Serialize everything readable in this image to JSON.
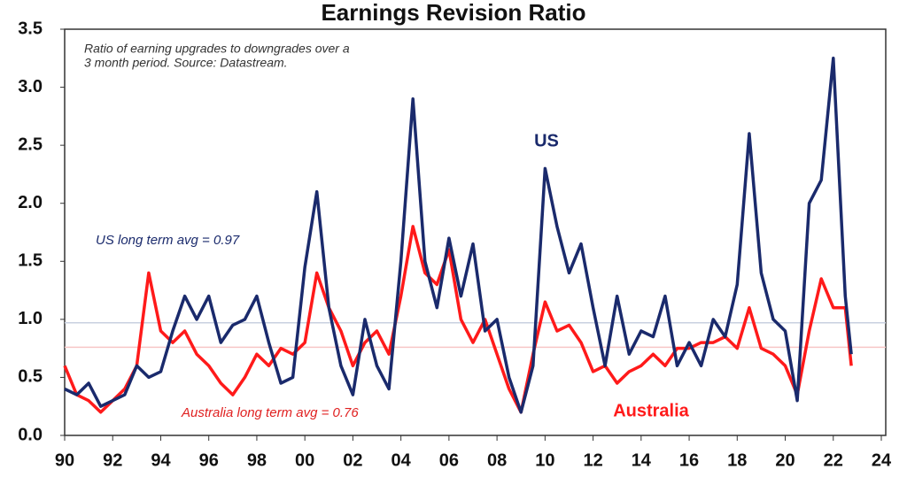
{
  "chart_data": {
    "type": "line",
    "title": "Earnings Revision Ratio",
    "note": [
      "Ratio of earning upgrades to downgrades over a",
      "3 month period. Source: Datastream."
    ],
    "x": [
      1990,
      1990.5,
      1991,
      1991.5,
      1992,
      1992.5,
      1993,
      1993.5,
      1994,
      1994.5,
      1995,
      1995.5,
      1996,
      1996.5,
      1997,
      1997.5,
      1998,
      1998.5,
      1999,
      1999.5,
      2000,
      2000.5,
      2001,
      2001.5,
      2002,
      2002.5,
      2003,
      2003.5,
      2004,
      2004.5,
      2005,
      2005.5,
      2006,
      2006.5,
      2007,
      2007.5,
      2008,
      2008.5,
      2009,
      2009.5,
      2010,
      2010.5,
      2011,
      2011.5,
      2012,
      2012.5,
      2013,
      2013.5,
      2014,
      2014.5,
      2015,
      2015.5,
      2016,
      2016.5,
      2017,
      2017.5,
      2018,
      2018.5,
      2019,
      2019.5,
      2020,
      2020.5,
      2021,
      2021.5,
      2022,
      2022.5,
      2022.75
    ],
    "series": [
      {
        "name": "US",
        "color": "#1a2a6c",
        "values": [
          0.4,
          0.35,
          0.45,
          0.25,
          0.3,
          0.35,
          0.6,
          0.5,
          0.55,
          0.9,
          1.2,
          1.0,
          1.2,
          0.8,
          0.95,
          1.0,
          1.2,
          0.8,
          0.45,
          0.5,
          1.45,
          2.1,
          1.1,
          0.6,
          0.35,
          1.0,
          0.6,
          0.4,
          1.5,
          2.9,
          1.5,
          1.1,
          1.7,
          1.2,
          1.65,
          0.9,
          1.0,
          0.5,
          0.2,
          0.6,
          2.3,
          1.8,
          1.4,
          1.65,
          1.1,
          0.6,
          1.2,
          0.7,
          0.9,
          0.85,
          1.2,
          0.6,
          0.8,
          0.6,
          1.0,
          0.85,
          1.3,
          2.6,
          1.4,
          1.0,
          0.9,
          0.3,
          2.0,
          2.2,
          3.25,
          1.2,
          0.7
        ]
      },
      {
        "name": "Australia",
        "color": "#ff1a1a",
        "values": [
          0.6,
          0.35,
          0.3,
          0.2,
          0.3,
          0.4,
          0.6,
          1.4,
          0.9,
          0.8,
          0.9,
          0.7,
          0.6,
          0.45,
          0.35,
          0.5,
          0.7,
          0.6,
          0.75,
          0.7,
          0.8,
          1.4,
          1.1,
          0.9,
          0.6,
          0.8,
          0.9,
          0.7,
          1.2,
          1.8,
          1.4,
          1.3,
          1.6,
          1.0,
          0.8,
          1.0,
          0.7,
          0.4,
          0.2,
          0.7,
          1.15,
          0.9,
          0.95,
          0.8,
          0.55,
          0.6,
          0.45,
          0.55,
          0.6,
          0.7,
          0.6,
          0.75,
          0.75,
          0.8,
          0.8,
          0.85,
          0.75,
          1.1,
          0.75,
          0.7,
          0.6,
          0.35,
          0.9,
          1.35,
          1.1,
          1.1,
          0.6
        ]
      }
    ],
    "reference_lines": [
      {
        "value": 0.97,
        "label": "US long term avg = 0.97",
        "color": "#c8d0e0",
        "text_color": "#1a2a6c"
      },
      {
        "value": 0.76,
        "label": "Australia long term avg = 0.76",
        "color": "#f7c6c6",
        "text_color": "#e02020"
      }
    ],
    "xlim": [
      1990,
      2024
    ],
    "xticks": [
      {
        "value": 1990,
        "label": "90"
      },
      {
        "value": 1992,
        "label": "92"
      },
      {
        "value": 1994,
        "label": "94"
      },
      {
        "value": 1996,
        "label": "96"
      },
      {
        "value": 1998,
        "label": "98"
      },
      {
        "value": 2000,
        "label": "00"
      },
      {
        "value": 2002,
        "label": "02"
      },
      {
        "value": 2004,
        "label": "04"
      },
      {
        "value": 2006,
        "label": "06"
      },
      {
        "value": 2008,
        "label": "08"
      },
      {
        "value": 2010,
        "label": "10"
      },
      {
        "value": 2012,
        "label": "12"
      },
      {
        "value": 2014,
        "label": "14"
      },
      {
        "value": 2016,
        "label": "16"
      },
      {
        "value": 2018,
        "label": "18"
      },
      {
        "value": 2020,
        "label": "20"
      },
      {
        "value": 2022,
        "label": "22"
      },
      {
        "value": 2024,
        "label": "24"
      }
    ],
    "ylim": [
      0,
      3.5
    ],
    "yticks": [
      {
        "value": 0,
        "label": "0.0"
      },
      0.5,
      {
        "value": 1,
        "label": "1.0"
      },
      1.5,
      {
        "value": 2,
        "label": "2.0"
      },
      2.5,
      {
        "value": 3,
        "label": "3.0"
      },
      3.5
    ]
  }
}
